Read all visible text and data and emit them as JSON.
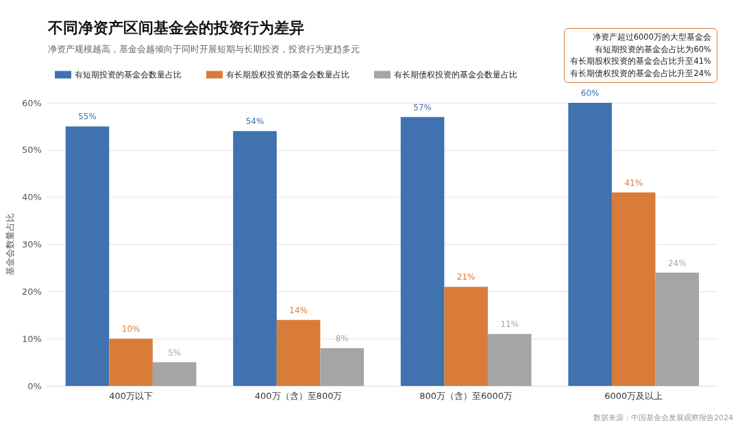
{
  "chart_data": {
    "type": "bar",
    "title": "不同净资产区间基金会的投资行为差异",
    "subtitle": "净资产规模越高，基金会越倾向于同时开展短期与长期投资，投资行为更趋多元",
    "ylabel": "基金会数量占比",
    "categories": [
      "400万以下",
      "400万（含）至800万",
      "800万（含）至6000万",
      "6000万及以上"
    ],
    "series": [
      {
        "name": "有短期投资的基金会数量占比",
        "color": "#3f72af",
        "values": [
          55,
          54,
          57,
          60
        ],
        "value_labels": [
          "55%",
          "54%",
          "57%",
          "60%"
        ]
      },
      {
        "name": "有长期股权投资的基金会数量占比",
        "color": "#d97c3a",
        "values": [
          10,
          14,
          21,
          41
        ],
        "value_labels": [
          "10%",
          "14%",
          "21%",
          "41%"
        ]
      },
      {
        "name": "有长期债权投资的基金会数量占比",
        "color": "#a5a5a5",
        "values": [
          5,
          8,
          11,
          24
        ],
        "value_labels": [
          "5%",
          "8%",
          "11%",
          "24%"
        ]
      }
    ],
    "ylim": [
      0,
      60
    ],
    "yticks": [
      {
        "value": 0,
        "label": "0%"
      },
      {
        "value": 10,
        "label": "10%"
      },
      {
        "value": 20,
        "label": "20%"
      },
      {
        "value": 30,
        "label": "30%"
      },
      {
        "value": 40,
        "label": "40%"
      },
      {
        "value": 50,
        "label": "50%"
      },
      {
        "value": 60,
        "label": "60%"
      }
    ],
    "grid": "y",
    "legend": "top left",
    "annotations": [
      "净资产超过6000万的大型基金会",
      "有短期投资的基金会占比为60%",
      "有长期股权投资的基金会占比升至41%",
      "有长期债权投资的基金会占比升至24%",
      "数据来源：中国基金会发展观察报告2024"
    ]
  }
}
